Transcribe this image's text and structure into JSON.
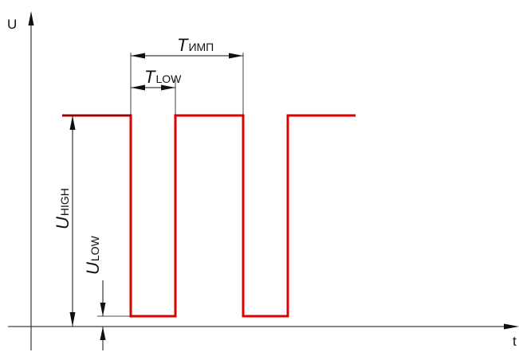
{
  "axes": {
    "y_label": "U",
    "x_label": "t"
  },
  "dimensions": {
    "t_imp": {
      "main": "T",
      "sub": "ИМП"
    },
    "t_low": {
      "main": "T",
      "sub": "LOW"
    },
    "u_high": {
      "main": "U",
      "sub": "HIGH"
    },
    "u_low": {
      "main": "U",
      "sub": "LOW"
    }
  },
  "colors": {
    "signal": "#dd0000",
    "lines": "#111111"
  }
}
